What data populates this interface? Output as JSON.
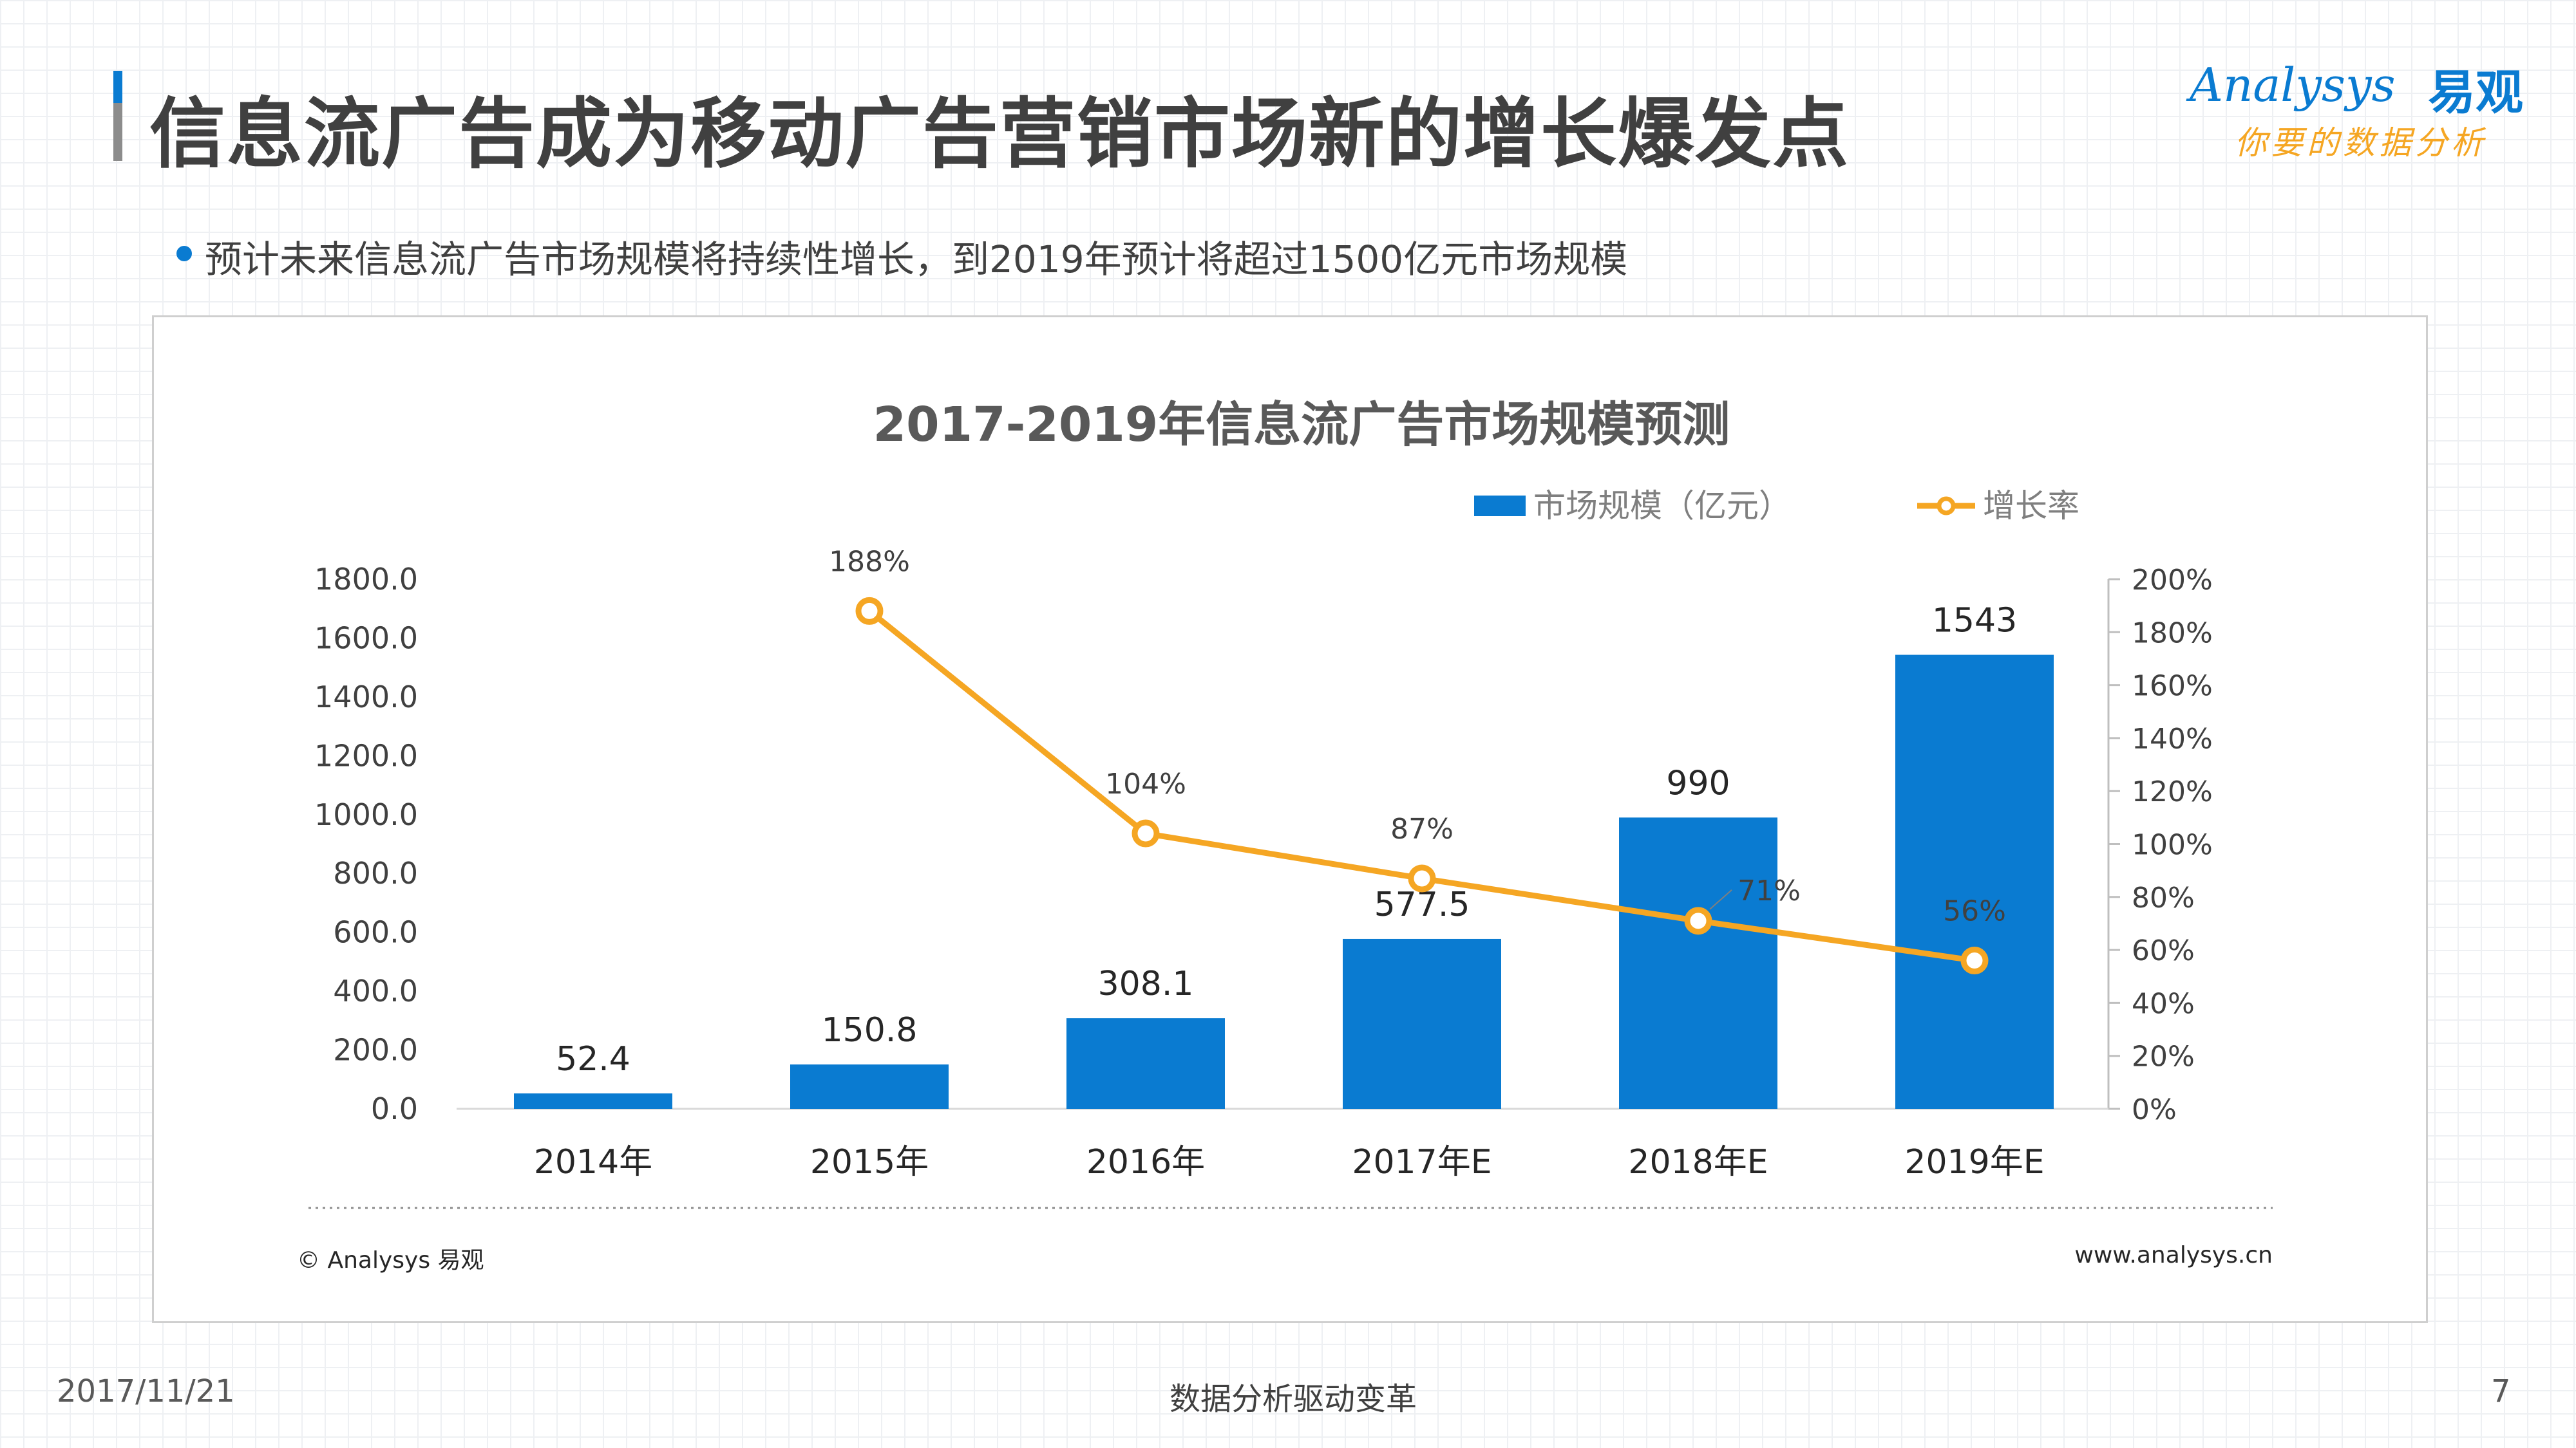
{
  "header": {
    "title": "信息流广告成为移动广告营销市场新的增长爆发点"
  },
  "logo": {
    "wordmark": "Analysys",
    "chinese": "易观",
    "slogan": "你要的数据分析"
  },
  "bullet": {
    "text": "预计未来信息流广告市场规模将持续性增长，到2019年预计将超过1500亿元市场规模"
  },
  "chart_data": {
    "type": "bar",
    "title": "2017-2019年信息流广告市场规模预测",
    "categories": [
      "2014年",
      "2015年",
      "2016年",
      "2017年E",
      "2018年E",
      "2019年E"
    ],
    "series": [
      {
        "name": "市场规模（亿元）",
        "type": "bar",
        "axis": "left",
        "color": "#0a7bd1",
        "values": [
          52.4,
          150.8,
          308.1,
          577.5,
          990,
          1543
        ],
        "labels": [
          "52.4",
          "150.8",
          "308.1",
          "577.5",
          "990",
          "1543"
        ]
      },
      {
        "name": "增长率",
        "type": "line",
        "axis": "right",
        "color": "#f5a623",
        "values": [
          null,
          188,
          104,
          87,
          71,
          56
        ],
        "labels": [
          "",
          "188%",
          "104%",
          "87%",
          "71%",
          "56%"
        ]
      }
    ],
    "y_left": {
      "range": [
        0,
        1800
      ],
      "ticks": [
        "0.0",
        "200.0",
        "400.0",
        "600.0",
        "800.0",
        "1000.0",
        "1200.0",
        "1400.0",
        "1600.0",
        "1800.0"
      ]
    },
    "y_right": {
      "range": [
        0,
        200
      ],
      "ticks": [
        "0%",
        "20%",
        "40%",
        "60%",
        "80%",
        "100%",
        "120%",
        "140%",
        "160%",
        "180%",
        "200%"
      ]
    },
    "legend_position": "top-right",
    "grid": false,
    "source": "© Analysys 易观",
    "website": "www.analysys.cn"
  },
  "footer": {
    "date": "2017/11/21",
    "center": "数据分析驱动变革",
    "page": "7"
  }
}
